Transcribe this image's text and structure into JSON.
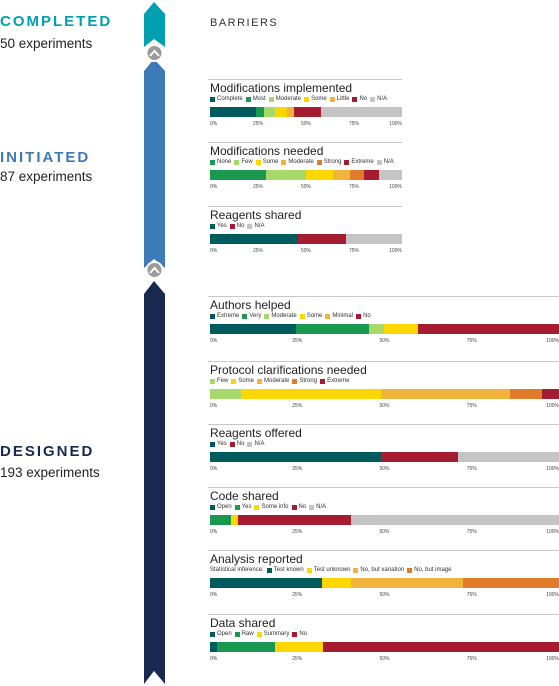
{
  "header": {
    "barriers_label": "BARRIERS"
  },
  "stages": [
    {
      "key": "completed",
      "title": "COMPLETED",
      "subtitle": "50 experiments",
      "color": "#00a0b0"
    },
    {
      "key": "initiated",
      "title": "INITIATED",
      "subtitle": "87 experiments",
      "color": "#3d7ab8"
    },
    {
      "key": "designed",
      "title": "DESIGNED",
      "subtitle": "193 experiments",
      "color": "#17294f"
    }
  ],
  "tick_labels": [
    "0%",
    "25%",
    "50%",
    "75%",
    "100%"
  ],
  "colors": {
    "dark_teal": "#005b5e",
    "green": "#1a9850",
    "light_green": "#a6d96a",
    "yellow": "#ffd700",
    "gold": "#f0b43c",
    "orange": "#e07b2a",
    "crimson": "#a51c30",
    "gray": "#c4c4c4"
  },
  "chart_data": [
    {
      "type": "bar",
      "stage": "completed",
      "title": "Modifications implemented",
      "categories": [
        "Complete",
        "Most",
        "Moderate",
        "Some",
        "Little",
        "No",
        "N/A"
      ],
      "colors": [
        "#005b5e",
        "#1a9850",
        "#a6d96a",
        "#ffd700",
        "#f0b43c",
        "#a51c30",
        "#c4c4c4"
      ],
      "values": [
        24,
        4,
        6,
        6,
        4,
        14,
        42
      ],
      "xlim": [
        0,
        100
      ]
    },
    {
      "type": "bar",
      "stage": "initiated",
      "title": "Modifications needed",
      "categories": [
        "None",
        "Few",
        "Some",
        "Moderate",
        "Strong",
        "Extreme",
        "N/A"
      ],
      "colors": [
        "#1a9850",
        "#a6d96a",
        "#ffd700",
        "#f0b43c",
        "#e07b2a",
        "#a51c30",
        "#c4c4c4"
      ],
      "values": [
        29,
        21,
        14,
        9,
        7,
        8,
        12
      ],
      "xlim": [
        0,
        100
      ]
    },
    {
      "type": "bar",
      "stage": "initiated",
      "title": "Reagents shared",
      "categories": [
        "Yes",
        "No",
        "N/A"
      ],
      "colors": [
        "#005b5e",
        "#a51c30",
        "#c4c4c4"
      ],
      "values": [
        46,
        25,
        29
      ],
      "xlim": [
        0,
        100
      ]
    },
    {
      "type": "bar",
      "stage": "designed",
      "title": "Authors helped",
      "categories": [
        "Extreme",
        "Very",
        "Moderate",
        "Some",
        "Minimal",
        "No"
      ],
      "colors": [
        "#005b5e",
        "#1a9850",
        "#a6d96a",
        "#ffd700",
        "#f0b43c",
        "#a51c30"
      ],
      "values": [
        24.5,
        21,
        4.5,
        9.5,
        0,
        40.5
      ],
      "xlim": [
        0,
        100
      ]
    },
    {
      "type": "bar",
      "stage": "designed",
      "title": "Protocol clarifications needed",
      "categories": [
        "Few",
        "Some",
        "Moderate",
        "Strong",
        "Extreme"
      ],
      "colors": [
        "#a6d96a",
        "#ffd700",
        "#f0b43c",
        "#e07b2a",
        "#a51c30"
      ],
      "values": [
        9,
        40,
        37,
        9,
        5
      ],
      "xlim": [
        0,
        100
      ]
    },
    {
      "type": "bar",
      "stage": "designed",
      "title": "Reagents offered",
      "categories": [
        "Yes",
        "No",
        "N/A"
      ],
      "colors": [
        "#005b5e",
        "#a51c30",
        "#c4c4c4"
      ],
      "values": [
        49,
        22,
        29
      ],
      "xlim": [
        0,
        100
      ]
    },
    {
      "type": "bar",
      "stage": "designed",
      "title": "Code shared",
      "categories": [
        "Open",
        "Yes",
        "Some info",
        "No",
        "N/A"
      ],
      "colors": [
        "#005b5e",
        "#1a9850",
        "#ffd700",
        "#a51c30",
        "#c4c4c4"
      ],
      "values": [
        0,
        6,
        2,
        32.5,
        59.5
      ],
      "xlim": [
        0,
        100
      ]
    },
    {
      "type": "bar",
      "stage": "designed",
      "title": "Analysis reported",
      "legend_prefix": "Statistical inference:",
      "categories": [
        "Test known",
        "Test unknown",
        "No, but variation",
        "No, but image"
      ],
      "colors": [
        "#005b5e",
        "#ffd700",
        "#f0b43c",
        "#e07b2a"
      ],
      "values": [
        32,
        8.5,
        32,
        27.5
      ],
      "xlim": [
        0,
        100
      ]
    },
    {
      "type": "bar",
      "stage": "designed",
      "title": "Data shared",
      "categories": [
        "Open",
        "Raw",
        "Summary",
        "No"
      ],
      "colors": [
        "#005b5e",
        "#1a9850",
        "#ffd700",
        "#a51c30"
      ],
      "values": [
        2,
        16.5,
        14,
        67.5
      ],
      "xlim": [
        0,
        100
      ]
    }
  ]
}
